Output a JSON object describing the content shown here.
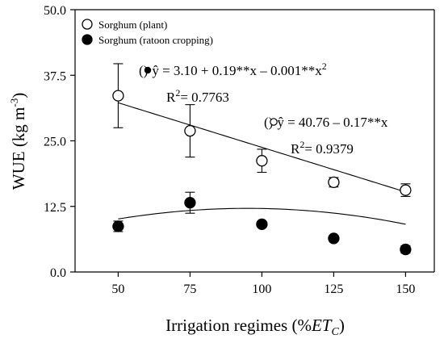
{
  "chart_data": {
    "type": "scatter",
    "xlabel": "Irrigation regimes (%",
    "xlabel_math": {
      "base": "ET",
      "sub": "C"
    },
    "xlabel_close": ")",
    "ylabel": "WUE (kg m",
    "ylabel_sup": "-3",
    "ylabel_close": ")",
    "xlim": [
      35,
      160
    ],
    "ylim": [
      0,
      50
    ],
    "x_ticks": [
      50,
      75,
      100,
      125,
      150
    ],
    "y_ticks": [
      0,
      12.5,
      25,
      37.5,
      50
    ],
    "x_tick_labels": [
      "50",
      "75",
      "100",
      "125",
      "150"
    ],
    "y_tick_labels": [
      "0.0",
      "12.5",
      "25.0",
      "37.5",
      "50.0"
    ],
    "grid": false,
    "legend_position": "top-left",
    "series": [
      {
        "name": "Sorghum (plant)",
        "marker": "open-circle",
        "x": [
          50,
          75,
          100,
          125,
          150
        ],
        "y": [
          33.6,
          26.9,
          21.2,
          17.1,
          15.6
        ],
        "err": [
          6.1,
          5.0,
          2.2,
          0.9,
          1.2
        ],
        "fit": {
          "type": "linear",
          "a": 40.76,
          "b": -0.17
        }
      },
      {
        "name": "Sorghum (ratoon cropping)",
        "marker": "filled-circle",
        "x": [
          50,
          75,
          100,
          125,
          150
        ],
        "y": [
          8.7,
          13.2,
          9.1,
          6.4,
          4.3
        ],
        "err": [
          1.0,
          2.0,
          0.5,
          0.4,
          0.7
        ],
        "fit": {
          "type": "quadratic",
          "a": 3.1,
          "b": 0.19,
          "c": -0.001
        }
      }
    ],
    "annotations": [
      {
        "marker": "filled",
        "eq_prefix": "(",
        "eq_suffix": ")",
        "equation": "ŷ = 3.10 + 0.19**x – 0.001**x",
        "equation_sup": "2",
        "r2_label": "R",
        "r2_sup": "2",
        "r2_value": "= 0.7763"
      },
      {
        "marker": "open",
        "eq_prefix": "(",
        "eq_suffix": ")",
        "equation": "ŷ = 40.76 – 0.17**x",
        "r2_label": "R",
        "r2_sup": "2",
        "r2_value": "= 0.9379"
      }
    ]
  }
}
